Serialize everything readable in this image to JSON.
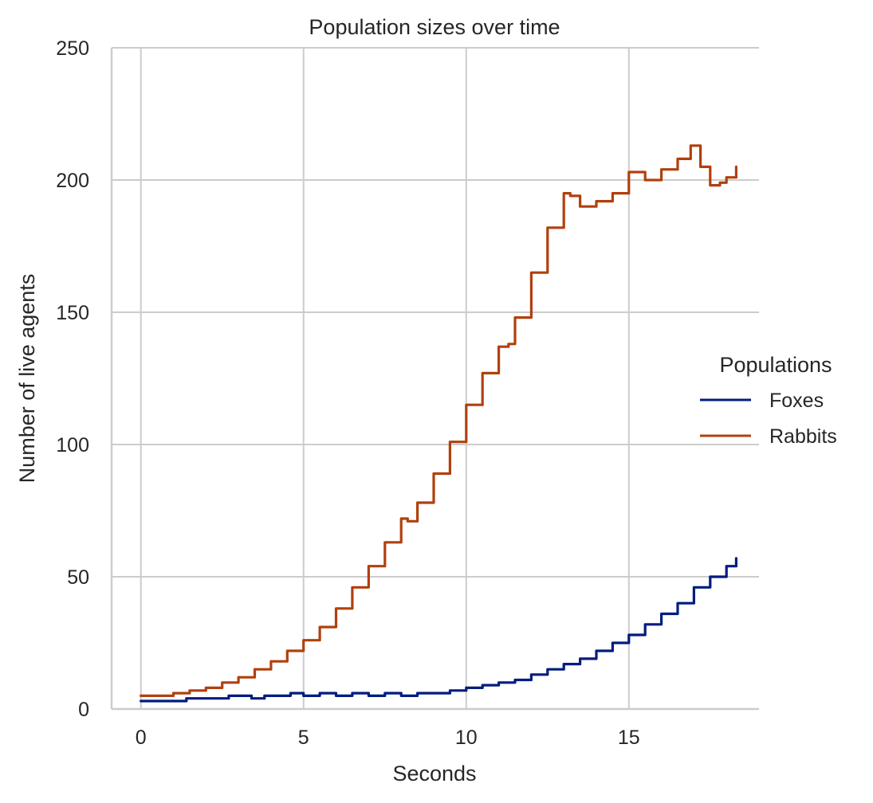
{
  "chart_data": {
    "type": "line",
    "title": "Population sizes over time",
    "xlabel": "Seconds",
    "ylabel": "Number of live agents",
    "xlim": [
      -0.9,
      19.0
    ],
    "ylim": [
      0,
      250
    ],
    "xticks": [
      0,
      5,
      10,
      15
    ],
    "yticks": [
      0,
      50,
      100,
      150,
      200,
      250
    ],
    "grid": true,
    "legend": {
      "title": "Populations",
      "placement": "right"
    },
    "series": [
      {
        "name": "Foxes",
        "color": "#001c7f",
        "x": [
          0,
          0.5,
          1.0,
          1.4,
          2.0,
          2.7,
          3.0,
          3.4,
          3.8,
          4.2,
          4.6,
          5.0,
          5.5,
          6.0,
          6.5,
          7.0,
          7.5,
          8.0,
          8.5,
          9.0,
          9.5,
          10.0,
          10.5,
          11.0,
          11.5,
          12.0,
          12.5,
          13.0,
          13.5,
          14.0,
          14.5,
          15.0,
          15.5,
          16.0,
          16.5,
          17.0,
          17.5,
          18.0,
          18.3
        ],
        "values": [
          3,
          3,
          3,
          4,
          4,
          5,
          5,
          4,
          5,
          5,
          6,
          5,
          6,
          5,
          6,
          5,
          6,
          5,
          6,
          6,
          7,
          8,
          9,
          10,
          11,
          13,
          15,
          17,
          19,
          22,
          25,
          28,
          32,
          36,
          40,
          46,
          50,
          54,
          57
        ]
      },
      {
        "name": "Rabbits",
        "color": "#b1400d",
        "x": [
          0,
          0.5,
          1.0,
          1.5,
          2.0,
          2.5,
          3.0,
          3.5,
          4.0,
          4.5,
          5.0,
          5.5,
          6.0,
          6.5,
          7.0,
          7.5,
          8.0,
          8.2,
          8.5,
          9.0,
          9.5,
          10.0,
          10.5,
          11.0,
          11.3,
          11.5,
          12.0,
          12.5,
          13.0,
          13.2,
          13.5,
          14.0,
          14.5,
          15.0,
          15.5,
          16.0,
          16.5,
          16.9,
          17.2,
          17.5,
          17.8,
          18.0,
          18.3
        ],
        "values": [
          5,
          5,
          6,
          7,
          8,
          10,
          12,
          15,
          18,
          22,
          26,
          31,
          38,
          46,
          54,
          63,
          72,
          71,
          78,
          89,
          101,
          115,
          127,
          137,
          138,
          148,
          165,
          182,
          195,
          194,
          190,
          192,
          195,
          203,
          200,
          204,
          208,
          213,
          205,
          198,
          199,
          201,
          205
        ]
      }
    ]
  }
}
